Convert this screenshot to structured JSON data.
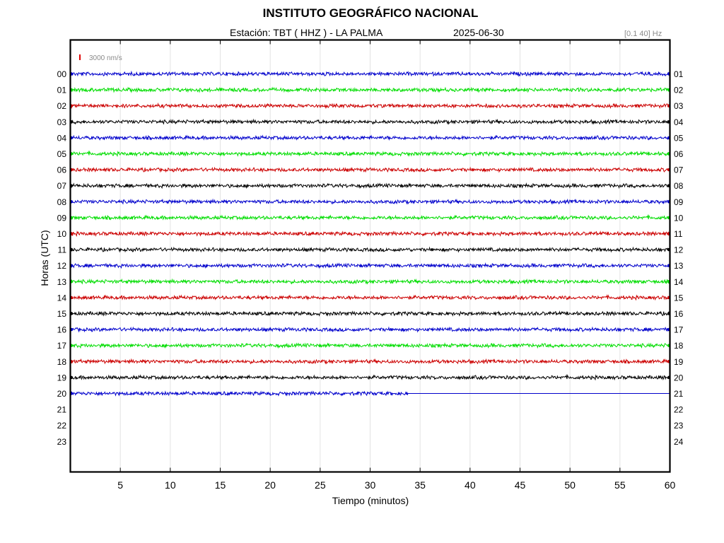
{
  "header": {
    "title": "INSTITUTO GEOGRÁFICO NACIONAL",
    "station": "Estación:  TBT ( HHZ ) - LA PALMA",
    "date": "2025-06-30",
    "filter": "[0.1 40] Hz"
  },
  "chart_data": {
    "type": "line",
    "title": "INSTITUTO GEOGRÁFICO NACIONAL",
    "xlabel": "Tiempo (minutos)",
    "ylabel": "Horas (UTC)",
    "xlim": [
      0,
      60
    ],
    "x_ticks": [
      "5",
      "10",
      "15",
      "20",
      "25",
      "30",
      "35",
      "40",
      "45",
      "50",
      "55",
      "60"
    ],
    "y_ticks_left": [
      "00",
      "01",
      "02",
      "03",
      "04",
      "05",
      "06",
      "07",
      "08",
      "09",
      "10",
      "11",
      "12",
      "13",
      "14",
      "15",
      "16",
      "17",
      "18",
      "19",
      "20",
      "21",
      "22",
      "23"
    ],
    "y_ticks_right": [
      "01",
      "02",
      "03",
      "04",
      "05",
      "06",
      "07",
      "08",
      "09",
      "10",
      "11",
      "12",
      "13",
      "14",
      "15",
      "16",
      "17",
      "18",
      "19",
      "20",
      "21",
      "22",
      "23",
      "24"
    ],
    "scale_label": "3000 nm/s",
    "scale_color": "#e00000",
    "grid": true,
    "trace_colors": [
      "#0000cc",
      "#00dd00",
      "#cc0000",
      "#000000"
    ],
    "traces": [
      {
        "hour": "00",
        "end_minute": 60
      },
      {
        "hour": "01",
        "end_minute": 60
      },
      {
        "hour": "02",
        "end_minute": 60
      },
      {
        "hour": "03",
        "end_minute": 60
      },
      {
        "hour": "04",
        "end_minute": 60
      },
      {
        "hour": "05",
        "end_minute": 60
      },
      {
        "hour": "06",
        "end_minute": 60
      },
      {
        "hour": "07",
        "end_minute": 60
      },
      {
        "hour": "08",
        "end_minute": 60
      },
      {
        "hour": "09",
        "end_minute": 60
      },
      {
        "hour": "10",
        "end_minute": 60
      },
      {
        "hour": "11",
        "end_minute": 60
      },
      {
        "hour": "12",
        "end_minute": 60
      },
      {
        "hour": "13",
        "end_minute": 60
      },
      {
        "hour": "14",
        "end_minute": 60
      },
      {
        "hour": "15",
        "end_minute": 60
      },
      {
        "hour": "16",
        "end_minute": 60
      },
      {
        "hour": "17",
        "end_minute": 60
      },
      {
        "hour": "18",
        "end_minute": 60
      },
      {
        "hour": "19",
        "end_minute": 60
      },
      {
        "hour": "20",
        "end_minute": 33.8
      }
    ]
  }
}
